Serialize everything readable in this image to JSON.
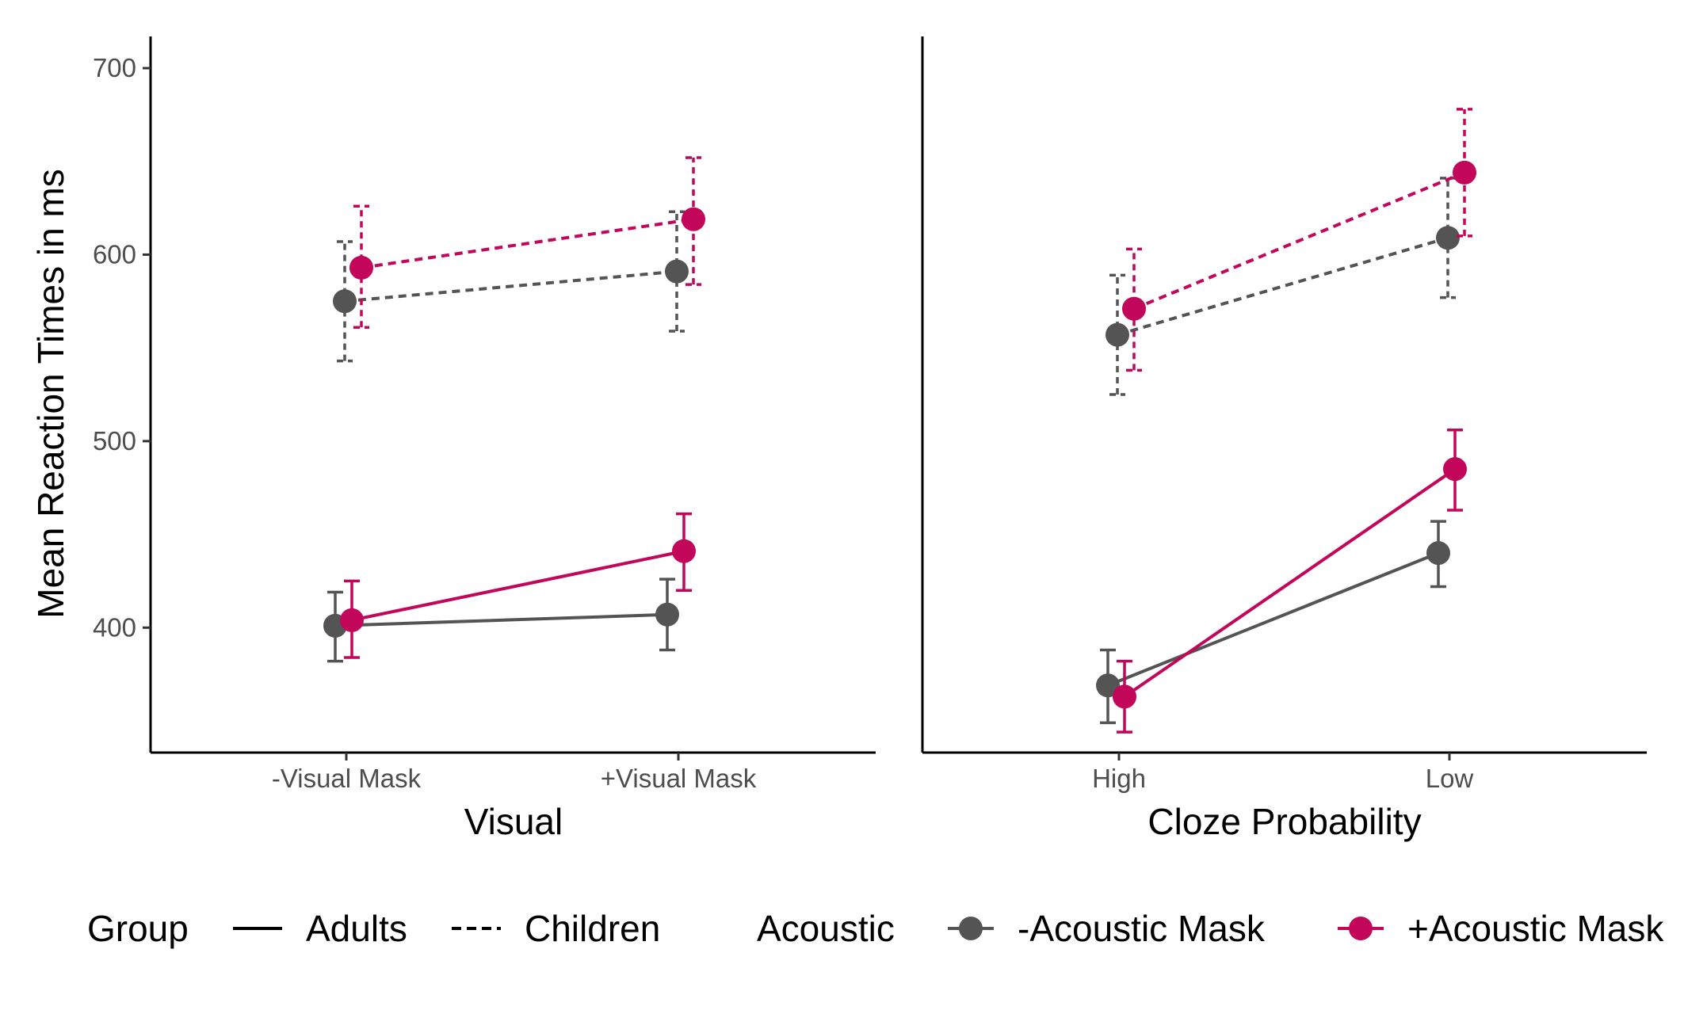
{
  "chart_data": {
    "type": "line",
    "ylabel": "Mean Reaction Times in ms",
    "yticks": [
      400,
      500,
      600,
      700
    ],
    "ylim": [
      333,
      717
    ],
    "grid": false,
    "legend_position": "bottom",
    "colors": {
      "no_mask": "#545454",
      "mask": "#C2065A"
    },
    "panels": [
      {
        "xlabel": "Visual",
        "categories": [
          "-Visual Mask",
          "+Visual Mask"
        ],
        "series": [
          {
            "group": "Adults",
            "acoustic": "-Acoustic Mask",
            "values": [
              401,
              407
            ],
            "err_low": [
              382,
              388
            ],
            "err_high": [
              419,
              426
            ]
          },
          {
            "group": "Adults",
            "acoustic": "+Acoustic Mask",
            "values": [
              404,
              441
            ],
            "err_low": [
              384,
              420
            ],
            "err_high": [
              425,
              461
            ]
          },
          {
            "group": "Children",
            "acoustic": "-Acoustic Mask",
            "values": [
              575,
              591
            ],
            "err_low": [
              543,
              559
            ],
            "err_high": [
              607,
              623
            ]
          },
          {
            "group": "Children",
            "acoustic": "+Acoustic Mask",
            "values": [
              593,
              619
            ],
            "err_low": [
              561,
              584
            ],
            "err_high": [
              626,
              652
            ]
          }
        ]
      },
      {
        "xlabel": "Cloze Probability",
        "categories": [
          "High",
          "Low"
        ],
        "series": [
          {
            "group": "Adults",
            "acoustic": "-Acoustic Mask",
            "values": [
              369,
              440
            ],
            "err_low": [
              349,
              422
            ],
            "err_high": [
              388,
              457
            ]
          },
          {
            "group": "Adults",
            "acoustic": "+Acoustic Mask",
            "values": [
              363,
              485
            ],
            "err_low": [
              344,
              463
            ],
            "err_high": [
              382,
              506
            ]
          },
          {
            "group": "Children",
            "acoustic": "-Acoustic Mask",
            "values": [
              557,
              609
            ],
            "err_low": [
              525,
              577
            ],
            "err_high": [
              589,
              641
            ]
          },
          {
            "group": "Children",
            "acoustic": "+Acoustic Mask",
            "values": [
              571,
              644
            ],
            "err_low": [
              538,
              610
            ],
            "err_high": [
              603,
              678
            ]
          }
        ]
      }
    ],
    "legend": {
      "group_title": "Group",
      "group_items": [
        {
          "label": "Adults",
          "linetype": "solid"
        },
        {
          "label": "Children",
          "linetype": "dashed"
        }
      ],
      "acoustic_title": "Acoustic",
      "acoustic_items": [
        {
          "label": "-Acoustic Mask",
          "color": "#545454"
        },
        {
          "label": "+Acoustic Mask",
          "color": "#C2065A"
        }
      ]
    }
  }
}
